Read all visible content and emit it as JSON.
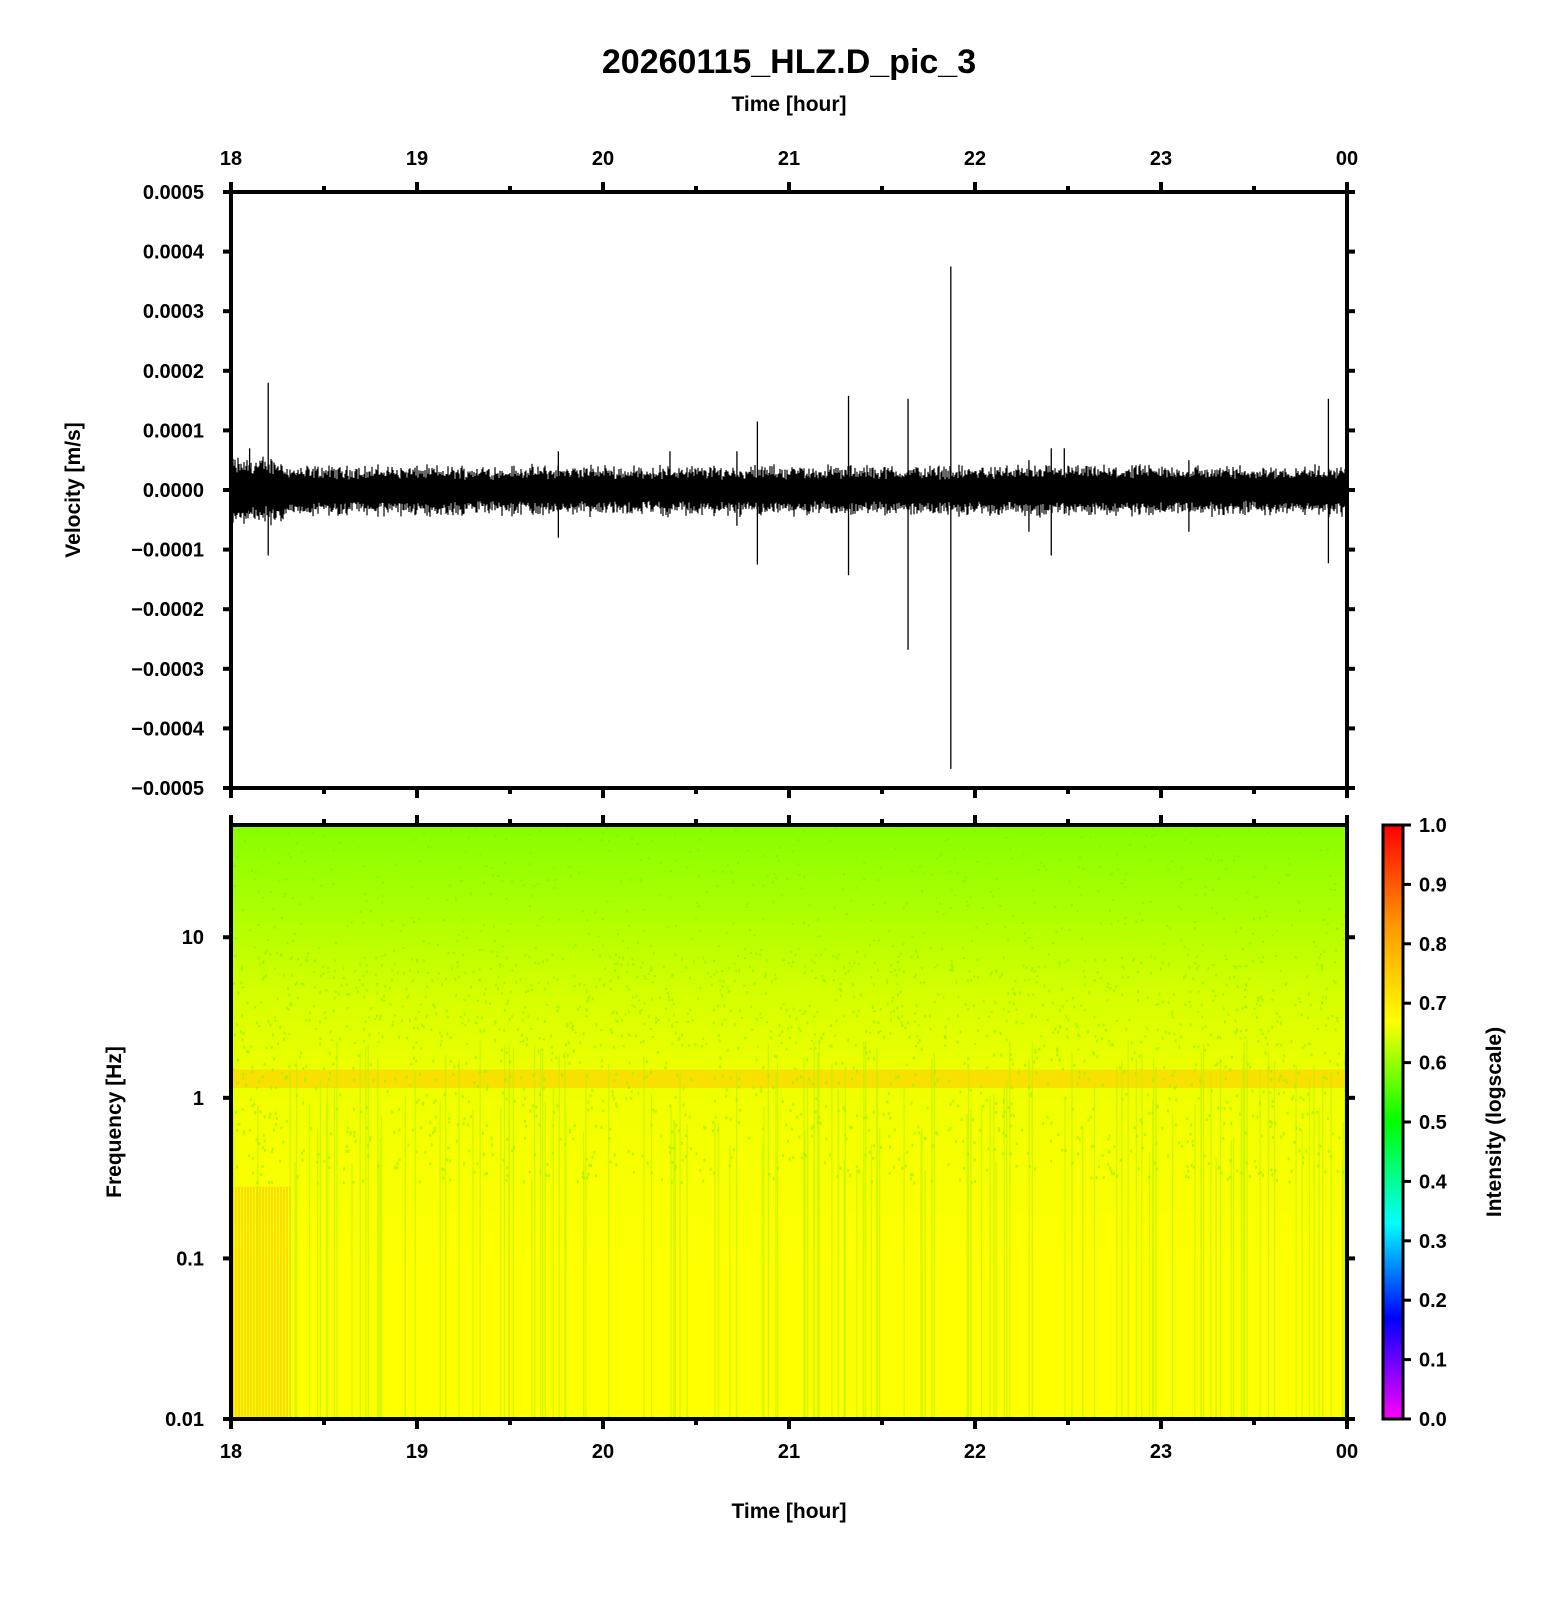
{
  "chart_data": [
    {
      "type": "line",
      "title": "20260115_HLZ.D_pic_3",
      "top_xlabel": "Time [hour]",
      "ylabel": "Velocity [m/s]",
      "x_range_hours": [
        18,
        24
      ],
      "x_tick_labels": [
        "18",
        "19",
        "20",
        "21",
        "22",
        "23",
        "00"
      ],
      "ylim": [
        -0.0005,
        0.0005
      ],
      "y_tick_labels": [
        "0.0005",
        "0.0004",
        "0.0003",
        "0.0002",
        "0.0001",
        "0.0000",
        "−0.0001",
        "−0.0002",
        "−0.0003",
        "−0.0004",
        "−0.0005"
      ],
      "series": [
        {
          "noise_band_amplitude": 3e-05,
          "spikes": [
            {
              "x": 18.2,
              "y_max": 0.00018,
              "y_min": -0.00011
            },
            {
              "x": 18.1,
              "y_max": 7e-05,
              "y_min": -4e-05
            },
            {
              "x": 19.76,
              "y_max": 6.5e-05,
              "y_min": -8e-05
            },
            {
              "x": 20.36,
              "y_max": 6.5e-05,
              "y_min": -4e-05
            },
            {
              "x": 20.72,
              "y_max": 6.5e-05,
              "y_min": -6e-05
            },
            {
              "x": 20.83,
              "y_max": 0.000115,
              "y_min": -0.000125
            },
            {
              "x": 21.32,
              "y_max": 0.000158,
              "y_min": -0.000143
            },
            {
              "x": 21.64,
              "y_max": 0.000153,
              "y_min": -0.000268
            },
            {
              "x": 21.87,
              "y_max": 0.000375,
              "y_min": -0.000468
            },
            {
              "x": 22.29,
              "y_max": 5e-05,
              "y_min": -7e-05
            },
            {
              "x": 22.41,
              "y_max": 7e-05,
              "y_min": -0.00011
            },
            {
              "x": 22.48,
              "y_max": 7e-05,
              "y_min": -4e-05
            },
            {
              "x": 23.15,
              "y_max": 5e-05,
              "y_min": -7e-05
            },
            {
              "x": 23.9,
              "y_max": 0.000153,
              "y_min": -0.000123
            }
          ]
        }
      ]
    },
    {
      "type": "heatmap",
      "xlabel": "Time [hour]",
      "ylabel": "Frequency [Hz]",
      "x_range_hours": [
        18,
        24
      ],
      "x_tick_labels": [
        "18",
        "19",
        "20",
        "21",
        "22",
        "23",
        "00"
      ],
      "y_scale": "log",
      "ylim": [
        0.01,
        50
      ],
      "y_tick_labels": [
        "10",
        "1",
        "0.1",
        "0.01"
      ],
      "colorbar": {
        "label": "Intensity (logscale)",
        "range": [
          0.0,
          1.0
        ],
        "tick_labels": [
          "1.0",
          "0.9",
          "0.8",
          "0.7",
          "0.6",
          "0.5",
          "0.4",
          "0.3",
          "0.2",
          "0.1",
          "0.0"
        ],
        "colormap": "hsv-like (magenta→blue→cyan→green→yellow→red)"
      },
      "intensity_profile": [
        {
          "frequency_hz": 50,
          "intensity": 0.64
        },
        {
          "frequency_hz": 10,
          "intensity": 0.71
        },
        {
          "frequency_hz": 1.3,
          "intensity": 0.78
        },
        {
          "frequency_hz": 1,
          "intensity": 0.75
        },
        {
          "frequency_hz": 0.1,
          "intensity": 0.8
        },
        {
          "frequency_hz": 0.01,
          "intensity": 0.8
        }
      ],
      "colors": {
        "low_band": "#ffff00",
        "mid_band": "#d2ff00",
        "high_band": "#8cff00",
        "microseism_band": "#ffc800"
      }
    }
  ]
}
